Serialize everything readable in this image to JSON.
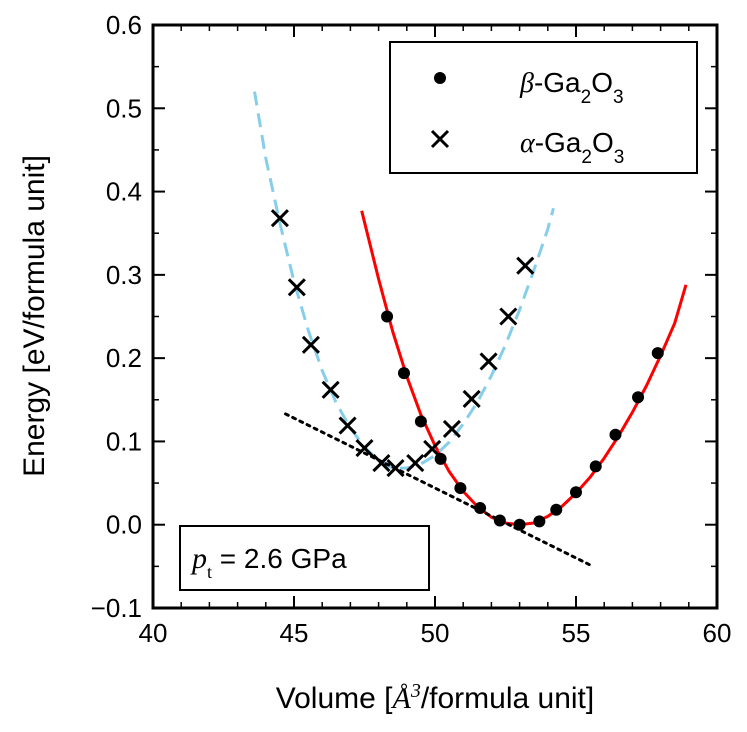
{
  "chart_data": {
    "type": "scatter",
    "xlabel": "Volume [Å³/formula unit]",
    "ylabel": "Energy [eV/formula unit]",
    "xlabel_parts": {
      "prefix": "Volume [",
      "symbol": "Å",
      "sup": "3",
      "suffix": "/formula unit]"
    },
    "xlim": [
      40,
      60
    ],
    "ylim": [
      -0.1,
      0.6
    ],
    "xticks": [
      40,
      45,
      50,
      55,
      60
    ],
    "xtick_labels": [
      "40",
      "45",
      "50",
      "55",
      "60"
    ],
    "yticks": [
      -0.1,
      0.0,
      0.1,
      0.2,
      0.3,
      0.4,
      0.5,
      0.6
    ],
    "ytick_labels": [
      "−0.1",
      "0.0",
      "0.1",
      "0.2",
      "0.3",
      "0.4",
      "0.5",
      "0.6"
    ],
    "series": [
      {
        "name": "β-Ga2O3",
        "legend_symbol": "β",
        "legend_main": "-Ga",
        "legend_sub1": "2",
        "legend_mid": "O",
        "legend_sub2": "3",
        "marker": "circle",
        "color": "#000000",
        "x": [
          48.3,
          48.9,
          49.5,
          50.2,
          50.9,
          51.6,
          52.3,
          53.0,
          53.7,
          54.3,
          55.0,
          55.7,
          56.4,
          57.2,
          57.9
        ],
        "y": [
          0.25,
          0.182,
          0.124,
          0.079,
          0.044,
          0.02,
          0.005,
          0.0,
          0.004,
          0.018,
          0.039,
          0.07,
          0.108,
          0.153,
          0.206
        ]
      },
      {
        "name": "α-Ga2O3",
        "legend_symbol": "α",
        "legend_main": "-Ga",
        "legend_sub1": "2",
        "legend_mid": "O",
        "legend_sub2": "3",
        "marker": "cross",
        "color": "#000000",
        "x": [
          44.5,
          45.1,
          45.6,
          46.3,
          46.9,
          47.5,
          48.1,
          48.6,
          49.3,
          49.9,
          50.6,
          51.3,
          51.9,
          52.6,
          53.2
        ],
        "y": [
          0.368,
          0.285,
          0.216,
          0.162,
          0.119,
          0.092,
          0.074,
          0.068,
          0.074,
          0.091,
          0.115,
          0.151,
          0.196,
          0.25,
          0.311
        ]
      }
    ],
    "fits": [
      {
        "name": "β-Ga2O3 fit",
        "color": "#ff0000",
        "dash": "solid",
        "x": [
          47.4,
          48.0,
          48.5,
          49.0,
          49.5,
          50.0,
          50.5,
          51.0,
          51.5,
          52.0,
          52.5,
          53.0,
          53.5,
          54.0,
          54.5,
          55.0,
          55.5,
          56.0,
          56.5,
          57.0,
          57.5,
          58.0,
          58.5,
          58.9
        ],
        "y": [
          0.377,
          0.295,
          0.232,
          0.178,
          0.132,
          0.095,
          0.064,
          0.04,
          0.022,
          0.009,
          0.002,
          0.0,
          0.002,
          0.01,
          0.022,
          0.038,
          0.057,
          0.08,
          0.106,
          0.135,
          0.167,
          0.203,
          0.242,
          0.288
        ]
      },
      {
        "name": "α-Ga2O3 fit",
        "color": "#87ceeb",
        "dash": "dashed",
        "x": [
          43.6,
          44.0,
          44.5,
          45.0,
          45.5,
          46.0,
          46.5,
          47.0,
          47.5,
          48.0,
          48.5,
          49.0,
          49.5,
          50.0,
          50.5,
          51.0,
          51.5,
          52.0,
          52.5,
          53.0,
          53.5,
          54.0,
          54.2
        ],
        "y": [
          0.52,
          0.44,
          0.362,
          0.292,
          0.234,
          0.185,
          0.146,
          0.116,
          0.093,
          0.077,
          0.068,
          0.068,
          0.073,
          0.083,
          0.099,
          0.121,
          0.147,
          0.179,
          0.216,
          0.258,
          0.305,
          0.355,
          0.38
        ]
      }
    ],
    "common_tangent": {
      "x": [
        44.7,
        55.6
      ],
      "y": [
        0.133,
        -0.05
      ],
      "style": "dotted",
      "color": "#000000"
    },
    "annotation": {
      "symbol": "p",
      "subscript": "t",
      "text": " = 2.6 GPa"
    },
    "legend_location": "top-right"
  }
}
